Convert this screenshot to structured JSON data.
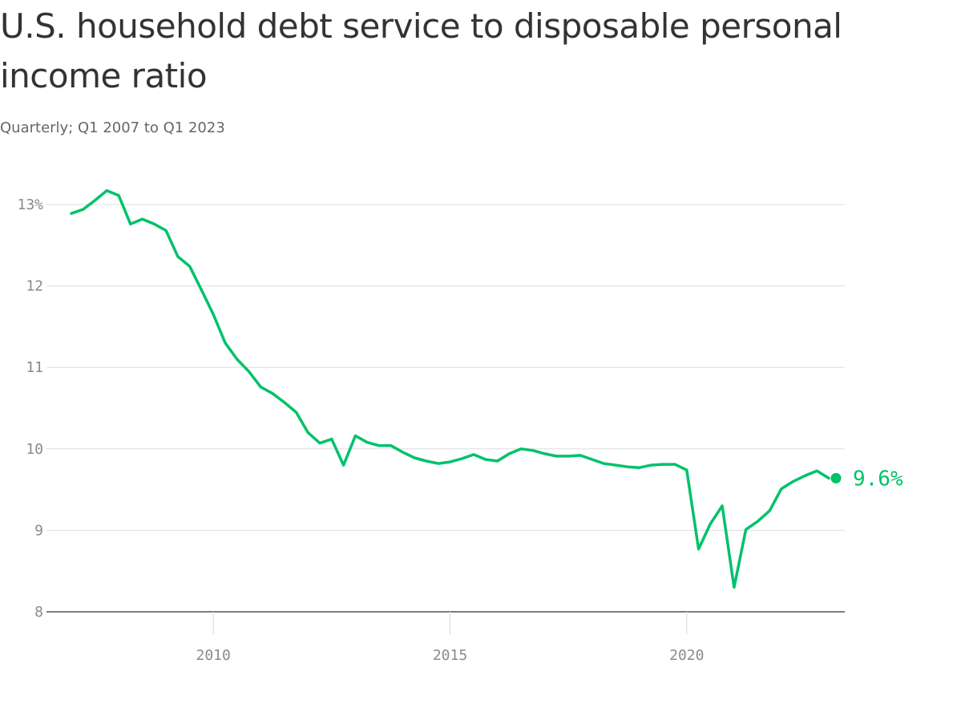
{
  "chart_data": {
    "type": "line",
    "title": "U.S. household debt service to disposable personal income ratio",
    "subtitle": "Quarterly; Q1 2007 to Q1 2023",
    "line_color": "#00c26a",
    "grid_color": "#dddddd",
    "axis_color": "#333333",
    "grid": true,
    "ylim": [
      8,
      13
    ],
    "xlim": [
      2006.6,
      2025.0
    ],
    "y_ticks": [
      {
        "value": 13,
        "label": "13%"
      },
      {
        "value": 12,
        "label": "12"
      },
      {
        "value": 11,
        "label": "11"
      },
      {
        "value": 10,
        "label": "10"
      },
      {
        "value": 9,
        "label": "9"
      },
      {
        "value": 8,
        "label": "8"
      }
    ],
    "x_ticks": [
      {
        "value": 2010,
        "label": "2010"
      },
      {
        "value": 2015,
        "label": "2015"
      },
      {
        "value": 2020,
        "label": "2020"
      }
    ],
    "series": [
      {
        "x": [
          2007.0,
          2007.25,
          2007.5,
          2007.75,
          2008.0,
          2008.25,
          2008.5,
          2008.75,
          2009.0,
          2009.25,
          2009.5,
          2009.75,
          2010.0,
          2010.25,
          2010.5,
          2010.75,
          2011.0,
          2011.25,
          2011.5,
          2011.75,
          2012.0,
          2012.25,
          2012.5,
          2012.75,
          2013.0,
          2013.25,
          2013.5,
          2013.75,
          2014.0,
          2014.25,
          2014.5,
          2014.75,
          2015.0,
          2015.25,
          2015.5,
          2015.75,
          2016.0,
          2016.25,
          2016.5,
          2016.75,
          2017.0,
          2017.25,
          2017.5,
          2017.75,
          2018.0,
          2018.25,
          2018.5,
          2018.75,
          2019.0,
          2019.25,
          2019.5,
          2019.75,
          2020.0,
          2020.25,
          2020.5,
          2020.75,
          2021.0,
          2021.25,
          2021.5,
          2021.75,
          2022.0,
          2022.25,
          2022.5,
          2022.75,
          2023.0
        ],
        "values": [
          12.89,
          12.94,
          13.05,
          13.17,
          13.11,
          12.76,
          12.82,
          12.76,
          12.68,
          12.36,
          12.24,
          11.95,
          11.65,
          11.3,
          11.1,
          10.95,
          10.76,
          10.68,
          10.57,
          10.45,
          10.2,
          10.07,
          10.12,
          9.8,
          10.16,
          10.08,
          10.04,
          10.04,
          9.96,
          9.89,
          9.85,
          9.82,
          9.84,
          9.88,
          9.93,
          9.87,
          9.85,
          9.94,
          10.0,
          9.98,
          9.94,
          9.91,
          9.91,
          9.92,
          9.87,
          9.82,
          9.8,
          9.78,
          9.77,
          9.8,
          9.81,
          9.81,
          9.74,
          8.77,
          9.08,
          9.3,
          8.3,
          9.01,
          9.11,
          9.24,
          9.51,
          9.6,
          9.67,
          9.73,
          9.64
        ]
      }
    ],
    "end_label": "9.6%"
  }
}
